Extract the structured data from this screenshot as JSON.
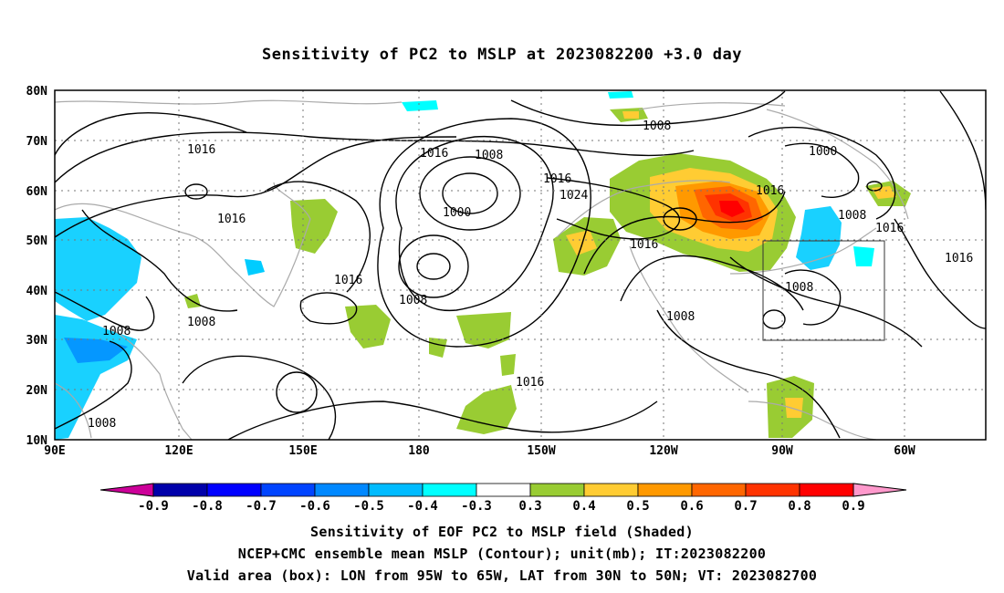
{
  "title": "Sensitivity of PC2 to MSLP at 2023082200 +3.0 day",
  "axes": {
    "lat_labels": [
      "80N",
      "70N",
      "60N",
      "50N",
      "40N",
      "30N",
      "20N",
      "10N"
    ],
    "lon_labels": [
      "90E",
      "120E",
      "150E",
      "180",
      "150W",
      "120W",
      "90W",
      "60W"
    ]
  },
  "contour_labels": [
    "1016",
    "1016",
    "1016",
    "1008",
    "1008",
    "1008",
    "1016",
    "1008",
    "1000",
    "1016",
    "1024",
    "1016",
    "1008",
    "1000",
    "1016",
    "1008",
    "1016",
    "1016",
    "1008",
    "1008",
    "1016"
  ],
  "valid_box": {
    "lon_from": "95W",
    "lon_to": "65W",
    "lat_from": "30N",
    "lat_to": "50N"
  },
  "colorbar": {
    "levels": [
      "-0.9",
      "-0.8",
      "-0.7",
      "-0.6",
      "-0.5",
      "-0.4",
      "-0.3",
      "0.3",
      "0.4",
      "0.5",
      "0.6",
      "0.7",
      "0.8",
      "0.9"
    ],
    "colors": [
      "#0000aa",
      "#0000ff",
      "#0044ff",
      "#0088ff",
      "#00bbff",
      "#00ffff",
      "#ffffff",
      "#99cc33",
      "#ffcc33",
      "#ff9900",
      "#ff6600",
      "#ff3300",
      "#ff0000"
    ],
    "low_extend_color": "#cc0099",
    "high_extend_color": "#ff99cc"
  },
  "footer": {
    "line1": "Sensitivity of EOF PC2 to MSLP field (Shaded)",
    "line2": "NCEP+CMC ensemble mean MSLP (Contour); unit(mb); IT:2023082200",
    "line3": "Valid area (box): LON from 95W to 65W, LAT from 30N to 50N; VT: 2023082700"
  }
}
